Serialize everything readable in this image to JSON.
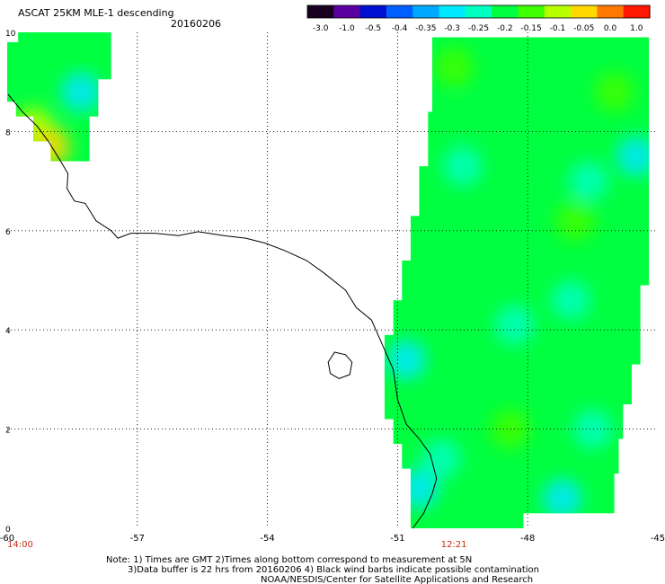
{
  "chart_data": {
    "type": "heatmap",
    "title": "ASCAT 25KM MLE-1 descending",
    "date": "20160206",
    "colorbar": {
      "tick_labels": [
        "-3.0",
        "-1.0",
        "-0.5",
        "-0.4",
        "-0.35",
        "-0.3",
        "-0.25",
        "-0.2",
        "-0.15",
        "-0.1",
        "-0.05",
        "0.0",
        "1.0"
      ],
      "colors": [
        "#1a0020",
        "#5a00a0",
        "#0010d0",
        "#0060ff",
        "#00a8ff",
        "#00e8ff",
        "#00ffc0",
        "#00ff40",
        "#40ff00",
        "#b8ff00",
        "#ffd800",
        "#ff7800",
        "#ff1800"
      ]
    },
    "x_axis": {
      "ticks": [
        -60,
        -57,
        -54,
        -51,
        -48,
        -45
      ],
      "tick_labels": [
        "-60",
        "-57",
        "-54",
        "-51",
        "-48",
        "-45"
      ],
      "range": [
        -60,
        -45
      ]
    },
    "y_axis": {
      "ticks": [
        0,
        2,
        4,
        6,
        8,
        10
      ],
      "tick_labels": [
        "0",
        "2",
        "4",
        "6",
        "8",
        "10"
      ],
      "range": [
        0,
        10
      ]
    },
    "grid": true,
    "time_labels": [
      {
        "text": "14:00",
        "lon": -59.7
      },
      {
        "text": "12:21",
        "lon": -49.7
      }
    ],
    "swaths": [
      {
        "outline": [
          [
            -59.75,
            10
          ],
          [
            -57.6,
            10
          ],
          [
            -57.6,
            9.05
          ],
          [
            -57.9,
            9.05
          ],
          [
            -57.9,
            8.3
          ],
          [
            -58.1,
            8.3
          ],
          [
            -58.1,
            7.4
          ],
          [
            -59.0,
            7.4
          ],
          [
            -59.0,
            7.8
          ],
          [
            -59.4,
            7.8
          ],
          [
            -59.4,
            8.3
          ],
          [
            -59.8,
            8.3
          ],
          [
            -59.8,
            8.6
          ],
          [
            -60,
            8.6
          ],
          [
            -60,
            9.8
          ],
          [
            -59.75,
            9.8
          ]
        ],
        "dominant_level": "-0.2",
        "patches": [
          {
            "lon": -59.4,
            "lat": 8.1,
            "level": "-0.1"
          },
          {
            "lon": -59.0,
            "lat": 7.7,
            "level": "-0.05"
          },
          {
            "lon": -58.3,
            "lat": 8.8,
            "level": "-0.3"
          }
        ]
      },
      {
        "outline": [
          [
            -50.2,
            9.9
          ],
          [
            -45.2,
            9.9
          ],
          [
            -45.2,
            4.9
          ],
          [
            -45.4,
            4.9
          ],
          [
            -45.4,
            3.3
          ],
          [
            -45.6,
            3.3
          ],
          [
            -45.6,
            2.5
          ],
          [
            -45.8,
            2.5
          ],
          [
            -45.8,
            1.8
          ],
          [
            -45.9,
            1.8
          ],
          [
            -45.9,
            1.1
          ],
          [
            -46.0,
            1.1
          ],
          [
            -46.0,
            0.3
          ],
          [
            -48.1,
            0.3
          ],
          [
            -48.1,
            0
          ],
          [
            -50.7,
            0
          ],
          [
            -50.7,
            1.2
          ],
          [
            -50.9,
            1.2
          ],
          [
            -50.9,
            1.7
          ],
          [
            -51.1,
            1.7
          ],
          [
            -51.1,
            2.2
          ],
          [
            -51.3,
            2.2
          ],
          [
            -51.3,
            3.9
          ],
          [
            -51.1,
            3.9
          ],
          [
            -51.1,
            4.6
          ],
          [
            -50.9,
            4.6
          ],
          [
            -50.9,
            5.4
          ],
          [
            -50.7,
            5.4
          ],
          [
            -50.7,
            6.3
          ],
          [
            -50.5,
            6.3
          ],
          [
            -50.5,
            7.3
          ],
          [
            -50.3,
            7.3
          ],
          [
            -50.3,
            8.4
          ],
          [
            -50.2,
            8.4
          ]
        ],
        "dominant_level": "-0.2",
        "patches": [
          {
            "lon": -50.5,
            "lat": 0.8,
            "level": "-0.3"
          },
          {
            "lon": -47.2,
            "lat": 0.6,
            "level": "-0.3"
          },
          {
            "lon": -50.0,
            "lat": 1.4,
            "level": "-0.25"
          },
          {
            "lon": -46.5,
            "lat": 2.0,
            "level": "-0.25"
          },
          {
            "lon": -45.5,
            "lat": 7.5,
            "level": "-0.3"
          },
          {
            "lon": -46.6,
            "lat": 7.0,
            "level": "-0.25"
          },
          {
            "lon": -49.5,
            "lat": 7.3,
            "level": "-0.25"
          },
          {
            "lon": -50.8,
            "lat": 3.4,
            "level": "-0.3"
          },
          {
            "lon": -48.3,
            "lat": 4.1,
            "level": "-0.25"
          },
          {
            "lon": -47.0,
            "lat": 4.6,
            "level": "-0.25"
          },
          {
            "lon": -49.3,
            "lat": 5.4,
            "level": "-0.2"
          },
          {
            "lon": -49.7,
            "lat": 9.3,
            "level": "-0.15"
          },
          {
            "lon": -46.0,
            "lat": 8.8,
            "level": "-0.15"
          },
          {
            "lon": -48.4,
            "lat": 2.0,
            "level": "-0.15"
          },
          {
            "lon": -46.9,
            "lat": 6.2,
            "level": "-0.15"
          },
          {
            "lon": -49.6,
            "lat": 8.3,
            "level": "-0.2"
          }
        ]
      }
    ],
    "coastline": [
      [
        -59.98,
        8.75
      ],
      [
        -59.65,
        8.4
      ],
      [
        -59.3,
        8.1
      ],
      [
        -59.05,
        7.8
      ],
      [
        -58.8,
        7.45
      ],
      [
        -58.6,
        7.15
      ],
      [
        -58.62,
        6.85
      ],
      [
        -58.45,
        6.6
      ],
      [
        -58.2,
        6.55
      ],
      [
        -57.95,
        6.2
      ],
      [
        -57.6,
        6.0
      ],
      [
        -57.45,
        5.85
      ],
      [
        -57.15,
        5.95
      ],
      [
        -56.6,
        5.95
      ],
      [
        -56.05,
        5.9
      ],
      [
        -55.6,
        5.98
      ],
      [
        -55.0,
        5.9
      ],
      [
        -54.5,
        5.85
      ],
      [
        -54.05,
        5.75
      ],
      [
        -53.6,
        5.6
      ],
      [
        -53.1,
        5.4
      ],
      [
        -52.7,
        5.15
      ],
      [
        -52.2,
        4.8
      ],
      [
        -51.95,
        4.45
      ],
      [
        -51.6,
        4.2
      ],
      [
        -51.4,
        3.8
      ],
      [
        -51.1,
        3.2
      ],
      [
        -51.0,
        2.6
      ],
      [
        -50.8,
        2.1
      ],
      [
        -50.5,
        1.8
      ],
      [
        -50.25,
        1.5
      ],
      [
        -50.1,
        1.0
      ],
      [
        -50.2,
        0.7
      ],
      [
        -50.4,
        0.3
      ],
      [
        -50.65,
        0.0
      ]
    ],
    "island": [
      [
        -52.45,
        3.55
      ],
      [
        -52.2,
        3.5
      ],
      [
        -52.05,
        3.35
      ],
      [
        -52.1,
        3.1
      ],
      [
        -52.35,
        3.02
      ],
      [
        -52.55,
        3.12
      ],
      [
        -52.6,
        3.35
      ]
    ],
    "notes": [
      "Note: 1) Times are GMT 2)Times along bottom correspond to measurement at 5N",
      "3)Data buffer is 22 hrs from 20160206 4) Black wind barbs indicate possible contamination",
      "NOAA/NESDIS/Center for Satellite Applications and Research"
    ]
  }
}
